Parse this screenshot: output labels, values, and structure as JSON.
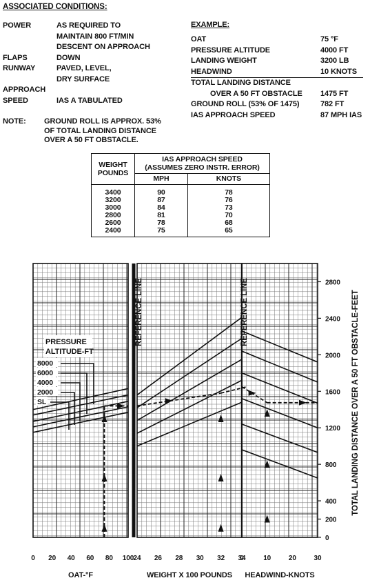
{
  "header": {
    "title": "ASSOCIATED CONDITIONS:"
  },
  "conditions": [
    {
      "label": "POWER",
      "value": "AS REQUIRED TO\nMAINTAIN 800 FT/MIN\nDESCENT ON APPROACH"
    },
    {
      "label": "FLAPS",
      "value": "DOWN"
    },
    {
      "label": "RUNWAY",
      "value": "PAVED, LEVEL,\nDRY SURFACE"
    },
    {
      "label": "APPROACH",
      "value": ""
    },
    {
      "label": "SPEED",
      "value": "IAS A  TABULATED"
    }
  ],
  "note": {
    "label": "NOTE:",
    "text": "GROUND ROLL IS APPROX. 53%\nOF TOTAL LANDING DISTANCE\nOVER A 50 FT OBSTACLE."
  },
  "example": {
    "title": "EXAMPLE:",
    "rows": [
      {
        "label": "OAT",
        "value": "75 °F"
      },
      {
        "label": "PRESSURE ALTITUDE",
        "value": "4000 FT"
      },
      {
        "label": "LANDING WEIGHT",
        "value": "3200 LB"
      },
      {
        "label": "HEADWIND",
        "value": "10 KNOTS"
      },
      {
        "label": "TOTAL LANDING DISTANCE",
        "value": ""
      },
      {
        "label": "OVER A 50 FT OBSTACLE",
        "value": "1475 FT"
      },
      {
        "label": "GROUND ROLL (53% OF 1475)",
        "value": "782 FT"
      },
      {
        "label": "IAS APPROACH SPEED",
        "value": "87 MPH IAS"
      }
    ]
  },
  "ias_table": {
    "col1_header": "WEIGHT\nPOUNDS",
    "col2_header": "IAS APPROACH SPEED\n(ASSUMES ZERO INSTR. ERROR)",
    "sub_headers": [
      "MPH",
      "KNOTS"
    ],
    "rows": [
      {
        "weight": "3400",
        "mph": "90",
        "knots": "78"
      },
      {
        "weight": "3200",
        "mph": "87",
        "knots": "76"
      },
      {
        "weight": "3000",
        "mph": "84",
        "knots": "73"
      },
      {
        "weight": "2800",
        "mph": "81",
        "knots": "70"
      },
      {
        "weight": "2600",
        "mph": "78",
        "knots": "68"
      },
      {
        "weight": "2400",
        "mph": "75",
        "knots": "65"
      }
    ]
  },
  "chart_data": {
    "type": "line",
    "title": "",
    "ylabel": "TOTAL LANDING DISTANCE OVER A 50 FT OBSTACLE-FEET",
    "ylim": [
      0,
      3000
    ],
    "yticks": [
      "0",
      "200",
      "400",
      "800",
      "1200",
      "1600",
      "2000",
      "2400",
      "2800"
    ],
    "grid": true,
    "reference_line_label": "REFERENCE LINE",
    "pressure_altitude_title": "PRESSURE\nALTITUDE-FT",
    "pressure_altitude_labels": [
      "8000",
      "6000",
      "4000",
      "2000",
      "SL"
    ],
    "panels": [
      {
        "name": "oat",
        "xlabel": "OAT-°F",
        "xlim": [
          0,
          100
        ],
        "xticks": [
          "0",
          "20",
          "40",
          "60",
          "80",
          "100"
        ],
        "series": [
          {
            "name": "SL",
            "x": [
              0,
              100
            ],
            "y": [
              1150,
              1370
            ]
          },
          {
            "name": "2000",
            "x": [
              0,
              100
            ],
            "y": [
              1210,
              1430
            ]
          },
          {
            "name": "4000",
            "x": [
              0,
              100
            ],
            "y": [
              1270,
              1490
            ]
          },
          {
            "name": "6000",
            "x": [
              0,
              100
            ],
            "y": [
              1340,
              1560
            ]
          },
          {
            "name": "8000",
            "x": [
              0,
              100
            ],
            "y": [
              1400,
              1630
            ]
          }
        ],
        "example_path": {
          "x": [
            75,
            75,
            100
          ],
          "y": [
            0,
            1440,
            1440
          ]
        }
      },
      {
        "name": "weight",
        "xlabel": "WEIGHT X 100 POUNDS",
        "xlim": [
          24,
          34
        ],
        "xticks": [
          "24",
          "26",
          "28",
          "30",
          "32",
          "34"
        ],
        "reference_x": 24,
        "series": [
          {
            "x": [
              24,
              34
            ],
            "y": [
              1000,
              1480
            ]
          },
          {
            "x": [
              24,
              34
            ],
            "y": [
              1140,
              1720
            ]
          },
          {
            "x": [
              24,
              34
            ],
            "y": [
              1280,
              1950
            ]
          },
          {
            "x": [
              24,
              34
            ],
            "y": [
              1420,
              2180
            ]
          },
          {
            "x": [
              24,
              34
            ],
            "y": [
              1560,
              2410
            ]
          }
        ],
        "example_path": {
          "x": [
            24,
            32,
            32,
            34.5
          ],
          "y": [
            1440,
            1580,
            1580,
            1650
          ]
        }
      },
      {
        "name": "headwind",
        "xlabel": "HEADWIND-KNOTS",
        "xlim": [
          0,
          30
        ],
        "xticks": [
          "0",
          "10",
          "20",
          "30"
        ],
        "reference_x": 0,
        "series": [
          {
            "x": [
              0,
              30
            ],
            "y": [
              960,
              650
            ]
          },
          {
            "x": [
              0,
              30
            ],
            "y": [
              1240,
              930
            ]
          },
          {
            "x": [
              0,
              30
            ],
            "y": [
              1520,
              1200
            ]
          },
          {
            "x": [
              0,
              30
            ],
            "y": [
              1800,
              1470
            ]
          },
          {
            "x": [
              0,
              30
            ],
            "y": [
              2040,
              1700
            ]
          },
          {
            "x": [
              0,
              30
            ],
            "y": [
              2260,
              1920
            ]
          }
        ],
        "example_path": {
          "x": [
            0,
            10,
            10,
            30
          ],
          "y": [
            1650,
            1475,
            1475,
            1475
          ]
        }
      }
    ]
  }
}
